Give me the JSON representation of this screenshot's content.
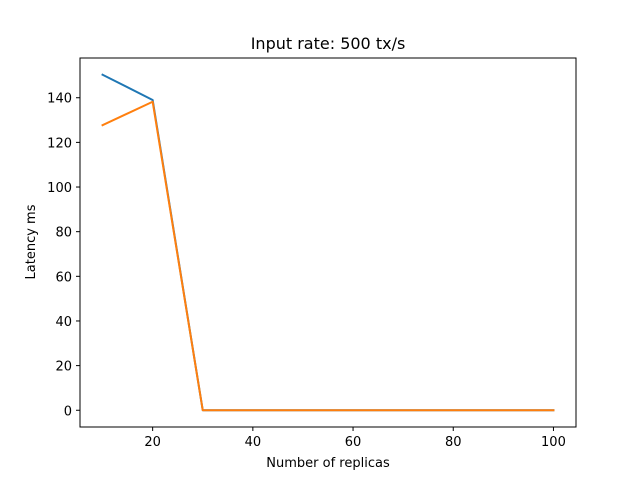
{
  "chart_data": {
    "type": "line",
    "title": "Input rate: 500 tx/s",
    "xlabel": "Number of replicas",
    "ylabel": "Latency ms",
    "x": [
      10,
      20,
      30,
      40,
      50,
      60,
      70,
      80,
      90,
      100
    ],
    "series": [
      {
        "values": [
          150.3,
          139.0,
          0.0,
          0.0,
          0.0,
          0.0,
          0.0,
          0.0,
          0.0,
          0.0
        ],
        "color": "#1f77b4"
      },
      {
        "values": [
          127.7,
          138.2,
          0.0,
          0.0,
          0.0,
          0.0,
          0.0,
          0.0,
          0.0,
          0.0
        ],
        "color": "#ff7f0e"
      }
    ],
    "xlim": [
      5.5,
      104.5
    ],
    "ylim": [
      -7.5,
      157.8
    ],
    "xticks": [
      20,
      40,
      60,
      80,
      100
    ],
    "yticks": [
      0,
      20,
      40,
      60,
      80,
      100,
      120,
      140
    ],
    "grid": false,
    "legend": "none"
  }
}
